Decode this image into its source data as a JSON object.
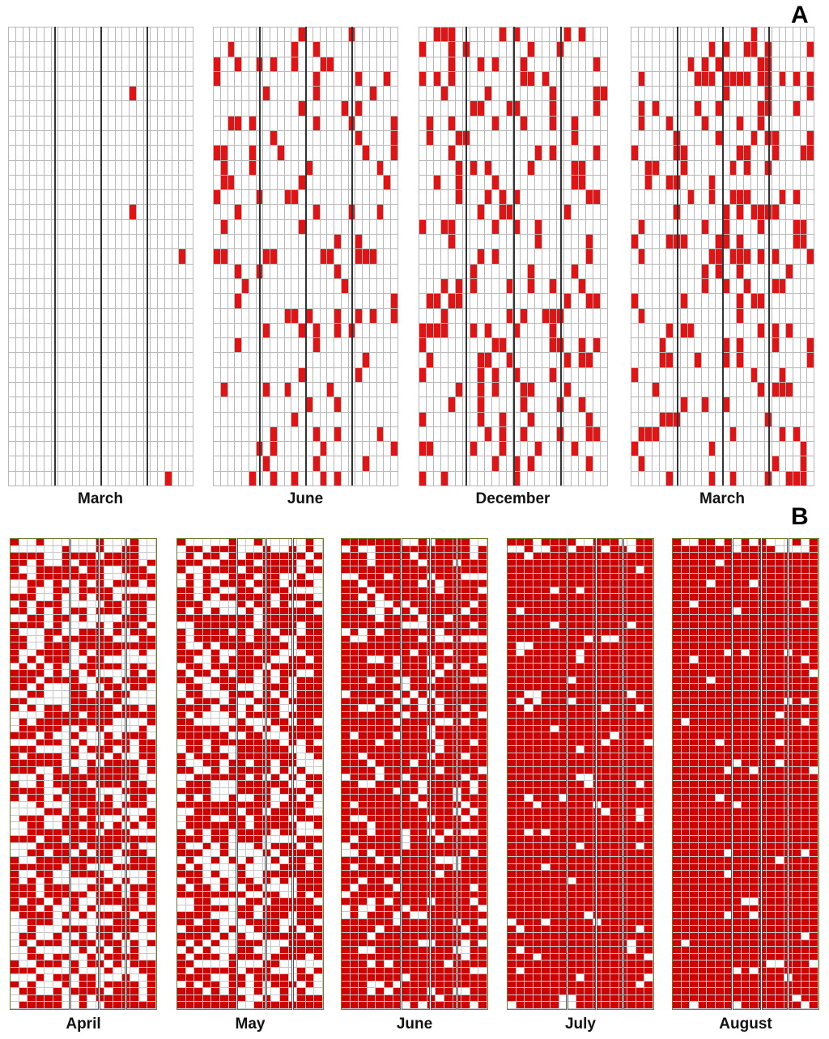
{
  "panelA": {
    "letter": "A",
    "labels": [
      "March",
      "June",
      "December",
      "March"
    ]
  },
  "panelB": {
    "letter": "B",
    "labels": [
      "April",
      "May",
      "June",
      "July",
      "August"
    ]
  },
  "colors": {
    "occupied": "#e01414",
    "empty": "#ffffff",
    "grid": "#b8b8b8"
  }
}
